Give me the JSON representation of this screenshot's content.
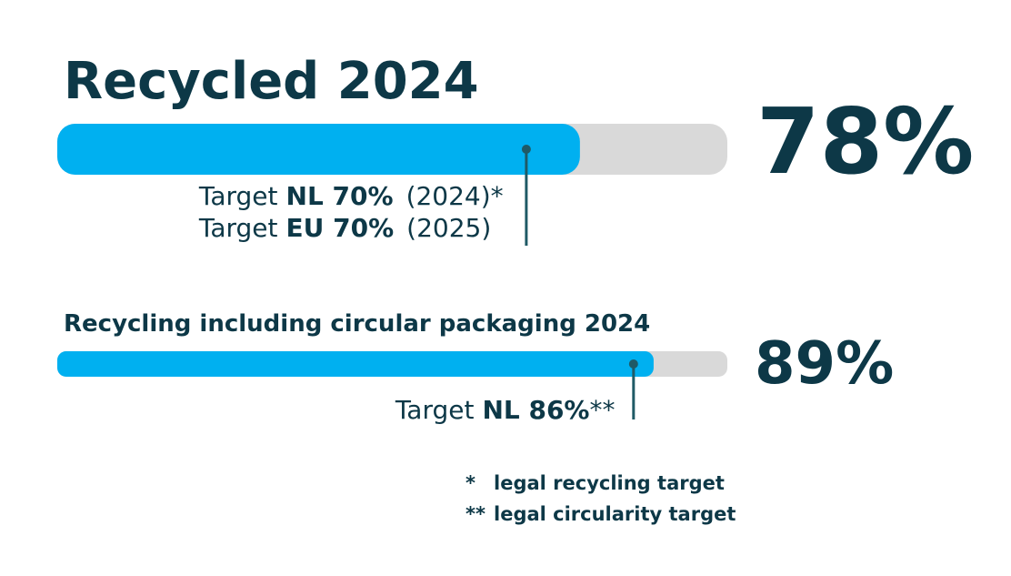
{
  "sections": [
    {
      "title": "Recycled 2024",
      "value": 78,
      "value_label": "78%",
      "target": 70,
      "target_lines": [
        {
          "prefix": "Target",
          "bold": "NL 70%",
          "suffix": "(2024)*"
        },
        {
          "prefix": "Target",
          "bold": "EU 70%",
          "suffix": "(2025)"
        }
      ]
    },
    {
      "title": "Recycling including circular packaging 2024",
      "value": 89,
      "value_label": "89%",
      "target": 86,
      "target_lines": [
        {
          "prefix": "Target",
          "bold": "NL 86%",
          "suffix": "**"
        }
      ]
    }
  ],
  "footnotes": [
    {
      "mark": "*",
      "text": "legal recycling target"
    },
    {
      "mark": "**",
      "text": "legal circularity target"
    }
  ]
}
